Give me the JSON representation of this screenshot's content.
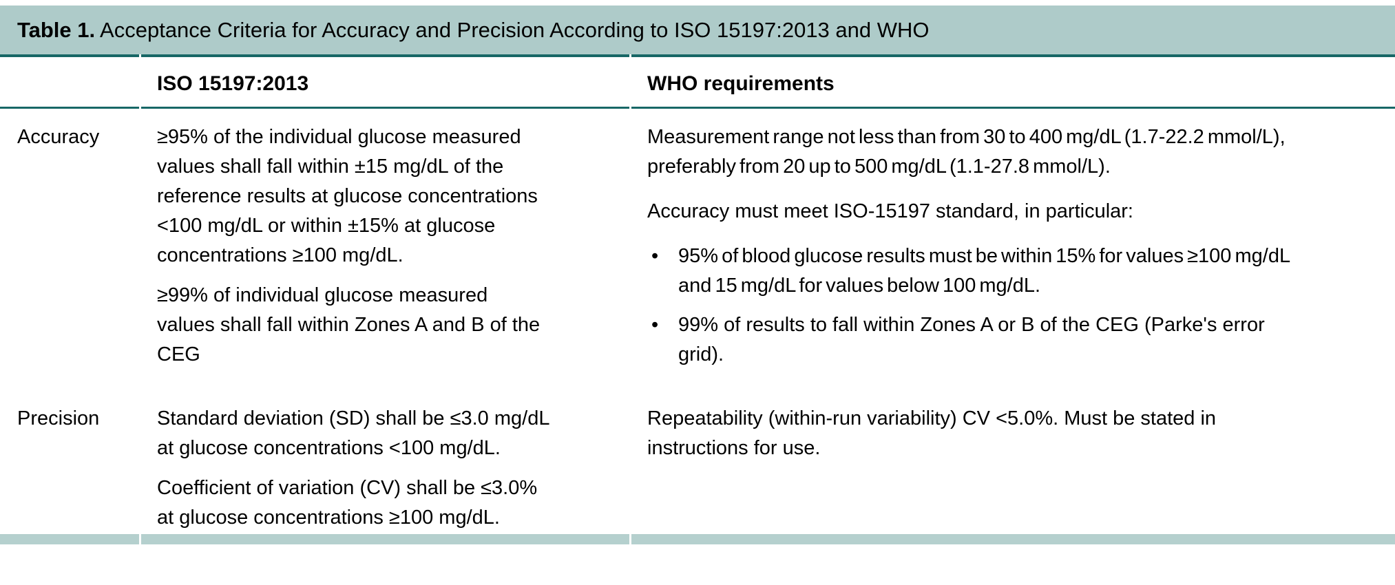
{
  "colors": {
    "header_bg": "#aecbc9",
    "rule_dark": "#176766",
    "bottom_bar": "#b5d0ce",
    "text": "#000000",
    "page_bg": "#ffffff"
  },
  "table": {
    "title_label": "Table 1.",
    "title_text": " Acceptance Criteria for Accuracy and Precision According to ISO 15197:2013 and WHO",
    "bullet_glyph": "•",
    "columns": {
      "iso": "ISO 15197:2013",
      "who": "WHO requirements"
    },
    "rows": [
      {
        "label": "Accuracy",
        "iso": [
          "≥95% of the individual glucose measured\nvalues shall fall within ±15 mg/dL of the\nreference results at glucose concentrations\n<100 mg/dL or within ±15% at glucose\nconcentrations ≥100 mg/dL.",
          "≥99% of individual glucose measured\nvalues shall fall within Zones A and B of the\nCEG"
        ],
        "who": [
          "Measurement range not less than from 30 to 400 mg/dL (1.7-22.2 mmol/L),\npreferably from 20 up to 500 mg/dL (1.1-27.8 mmol/L).",
          "Accuracy must meet ISO-15197 standard, in particular:"
        ],
        "who_bullets": [
          "95% of blood glucose results must be within 15% for values ≥100 mg/dL\nand 15 mg/dL for values below 100 mg/dL.",
          "99% of results to fall within Zones A or B of the CEG (Parke's error\ngrid)."
        ]
      },
      {
        "label": "Precision",
        "iso": [
          "Standard deviation (SD) shall be ≤3.0 mg/dL\nat glucose concentrations <100 mg/dL.",
          "Coefficient of variation (CV) shall be ≤3.0%\nat glucose concentrations ≥100 mg/dL."
        ],
        "who": [
          "Repeatability (within-run variability) CV <5.0%. Must be stated in\ninstructions for use."
        ]
      }
    ]
  }
}
